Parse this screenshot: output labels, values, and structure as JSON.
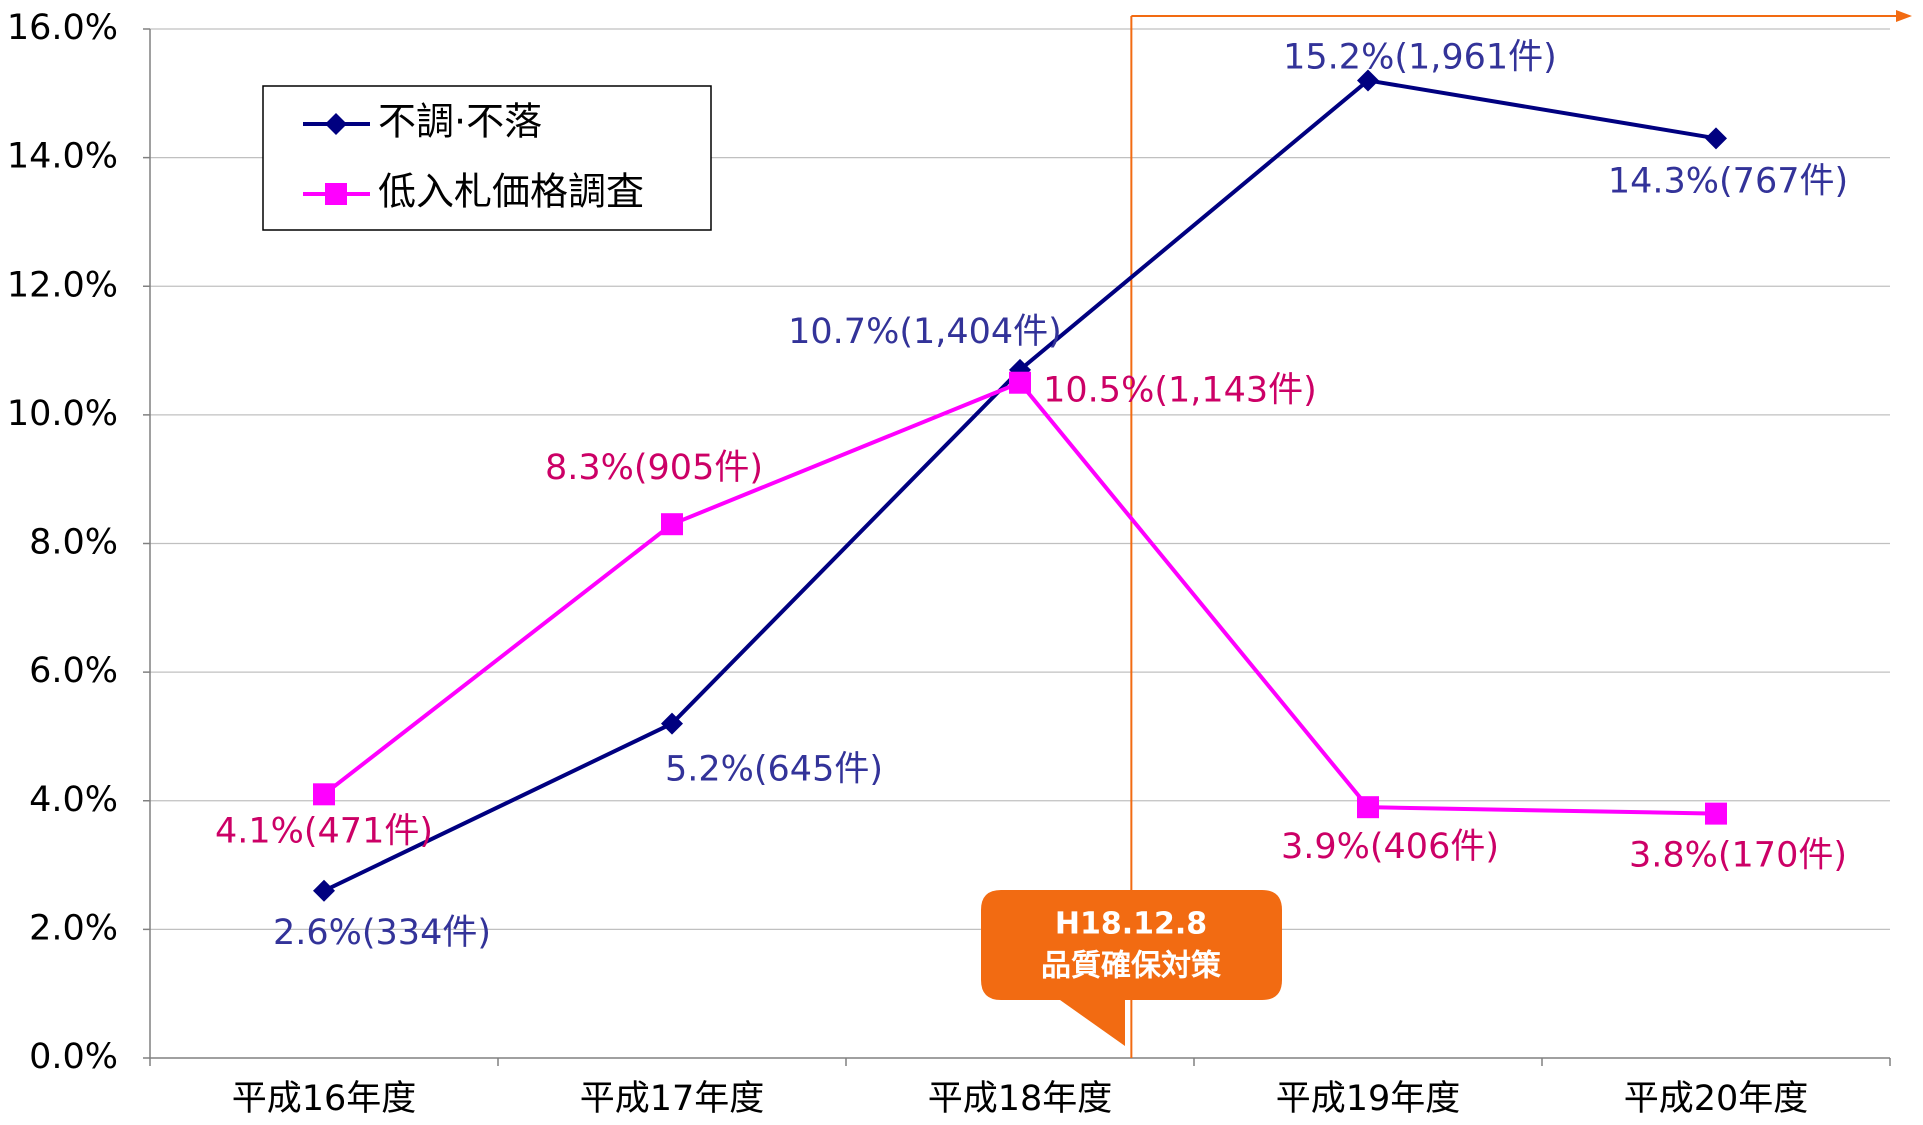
{
  "chart_data": {
    "type": "line",
    "categories": [
      "平成16年度",
      "平成17年度",
      "平成18年度",
      "平成19年度",
      "平成20年度"
    ],
    "series": [
      {
        "name": "不調·不落",
        "color": "#000080",
        "label_color": "#333399",
        "marker": "diamond",
        "values": [
          2.6,
          5.2,
          10.7,
          15.2,
          14.3
        ],
        "value_labels": [
          "2.6%(334件)",
          "5.2%(645件)",
          "10.7%(1,404件)",
          "15.2%(1,961件)",
          "14.3%(767件)"
        ]
      },
      {
        "name": "低入札価格調査",
        "color": "#ff00ff",
        "label_color": "#cc0066",
        "marker": "square",
        "values": [
          4.1,
          8.3,
          10.5,
          3.9,
          3.8
        ],
        "value_labels": [
          "4.1%(471件)",
          "8.3%(905件)",
          "10.5%(1,143件)",
          "3.9%(406件)",
          "3.8%(170件)"
        ]
      }
    ],
    "ylim": [
      0,
      16
    ],
    "yticks": [
      {
        "value": 0,
        "label": "0.0%"
      },
      {
        "value": 2,
        "label": "2.0%"
      },
      {
        "value": 4,
        "label": "4.0%"
      },
      {
        "value": 6,
        "label": "6.0%"
      },
      {
        "value": 8,
        "label": "8.0%"
      },
      {
        "value": 10,
        "label": "10.0%"
      },
      {
        "value": 12,
        "label": "12.0%"
      },
      {
        "value": 14,
        "label": "14.0%"
      },
      {
        "value": 16,
        "label": "16.0%"
      }
    ],
    "grid": true,
    "legend": "upper left",
    "annotation": {
      "lines": [
        "H18.12.8",
        "品質確保対策"
      ],
      "color": "#f26b12"
    }
  }
}
